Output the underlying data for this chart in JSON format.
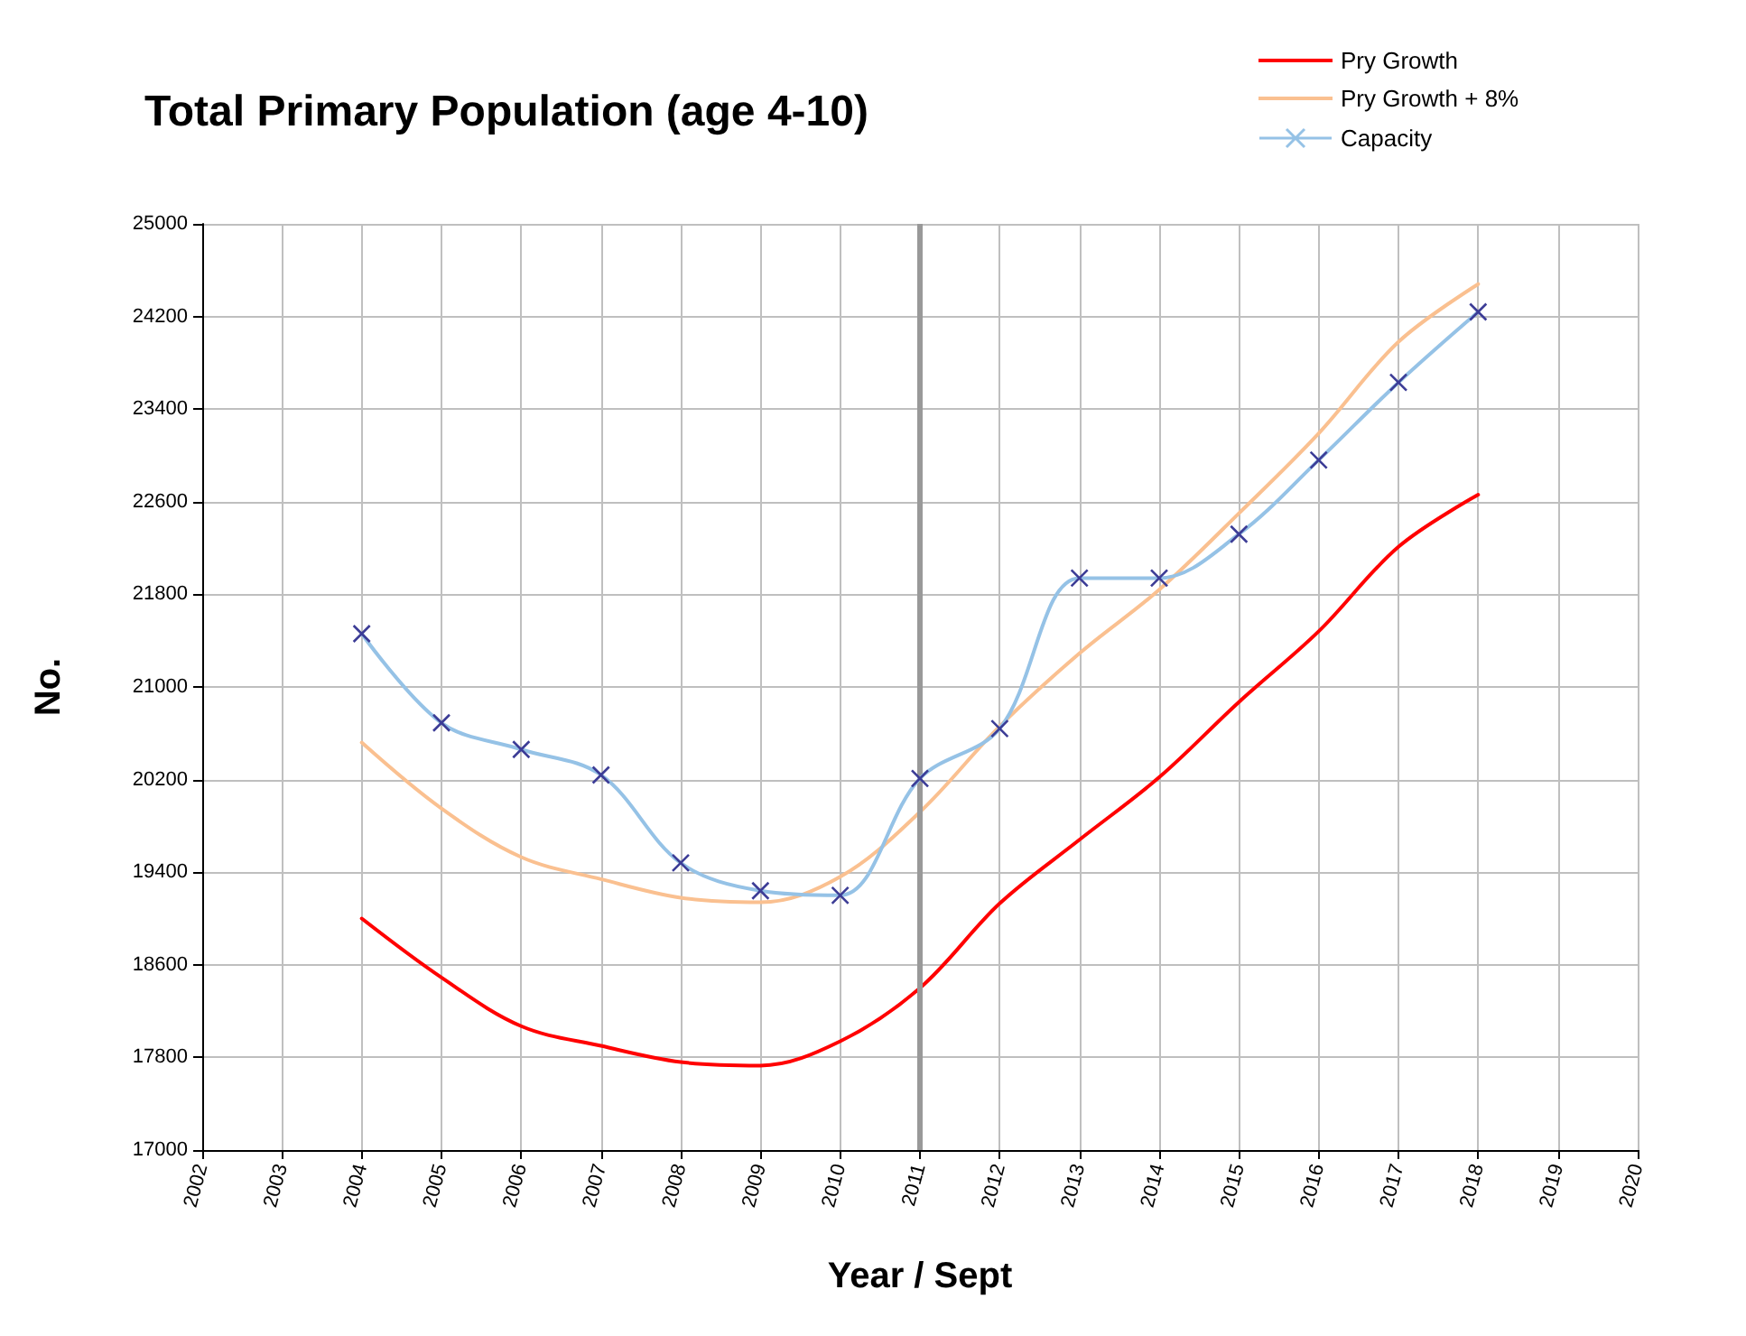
{
  "chart_data": {
    "type": "line",
    "title": "Total Primary Population (age 4-10)",
    "xlabel": "Year / Sept",
    "ylabel": "No.",
    "x": [
      2004,
      2005,
      2006,
      2007,
      2008,
      2009,
      2010,
      2011,
      2012,
      2013,
      2014,
      2015,
      2016,
      2017,
      2018
    ],
    "series": [
      {
        "name": "Pry Growth",
        "color": "#ff0000",
        "marker": "none",
        "values": [
          19000,
          18490,
          18070,
          17900,
          17760,
          17730,
          17940,
          18400,
          19130,
          19680,
          20220,
          20870,
          21480,
          22210,
          22660
        ]
      },
      {
        "name": "Pry Growth + 8%",
        "color": "#fac090",
        "marker": "none",
        "values": [
          20520,
          19950,
          19530,
          19340,
          19180,
          19140,
          19360,
          19920,
          20660,
          21290,
          21840,
          22500,
          23190,
          23980,
          24480
        ]
      },
      {
        "name": "Capacity",
        "color": "#95c2e6",
        "marker": "cross",
        "values": [
          21460,
          20690,
          20460,
          20240,
          19480,
          19240,
          19200,
          20210,
          20640,
          21940,
          21940,
          22320,
          22960,
          23630,
          24240
        ]
      }
    ],
    "xlim": [
      2002,
      2020
    ],
    "xticks": [
      2002,
      2003,
      2004,
      2005,
      2006,
      2007,
      2008,
      2009,
      2010,
      2011,
      2012,
      2013,
      2014,
      2015,
      2016,
      2017,
      2018,
      2019,
      2020
    ],
    "ylim": [
      17000,
      25000
    ],
    "yticks": [
      17000,
      17800,
      18600,
      19400,
      20200,
      21000,
      21800,
      22600,
      23400,
      24200,
      25000
    ],
    "ref_lines": [
      {
        "axis": "x",
        "value": 2011,
        "color": "#999999"
      }
    ],
    "grid": true,
    "legend": "top right",
    "line_style": "solid"
  }
}
